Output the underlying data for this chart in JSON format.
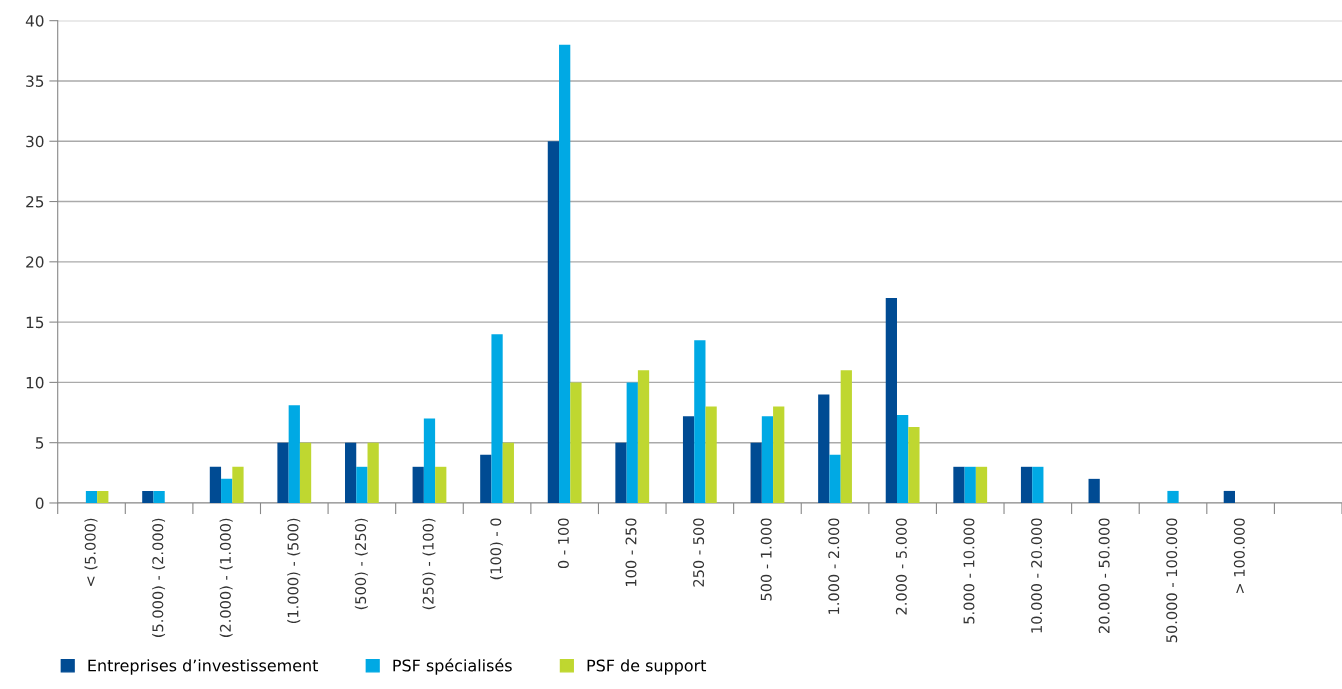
{
  "chart_data": {
    "type": "bar",
    "categories": [
      "< (5.000)",
      "(5.000) - (2.000)",
      "(2.000) - (1.000)",
      "(1.000) - (500)",
      "(500) - (250)",
      "(250) - (100)",
      "(100) - 0",
      "0 - 100",
      "100 - 250",
      "250 - 500",
      "500 - 1.000",
      "1.000 - 2.000",
      "2.000 - 5.000",
      "5.000 - 10.000",
      "10.000 - 20.000",
      "20.000 - 50.000",
      "50.000 - 100.000",
      "> 100.000",
      null
    ],
    "series": [
      {
        "name": "Entreprises d’investissement",
        "color": "#004b93",
        "values": [
          0,
          1,
          3,
          5,
          5,
          3,
          4,
          30,
          5,
          7.2,
          5,
          9,
          17,
          3,
          3,
          2,
          0,
          1,
          null
        ]
      },
      {
        "name": "PSF spécialisés",
        "color": "#00a9e4",
        "values": [
          1,
          1,
          2,
          8.1,
          3,
          7,
          14,
          38,
          10,
          13.5,
          7.2,
          4,
          7.3,
          3,
          3,
          0,
          1,
          0,
          null
        ]
      },
      {
        "name": "PSF de support",
        "color": "#bfd730",
        "values": [
          1,
          0,
          3,
          5,
          5,
          3,
          5,
          10,
          11,
          8,
          8,
          11,
          6.3,
          3,
          0,
          0,
          0,
          0,
          null
        ]
      }
    ],
    "ylim": [
      0,
      40
    ],
    "yticks": [
      0,
      5,
      10,
      15,
      20,
      25,
      30,
      35,
      40
    ],
    "grid": "y",
    "legend": "bottom left"
  }
}
